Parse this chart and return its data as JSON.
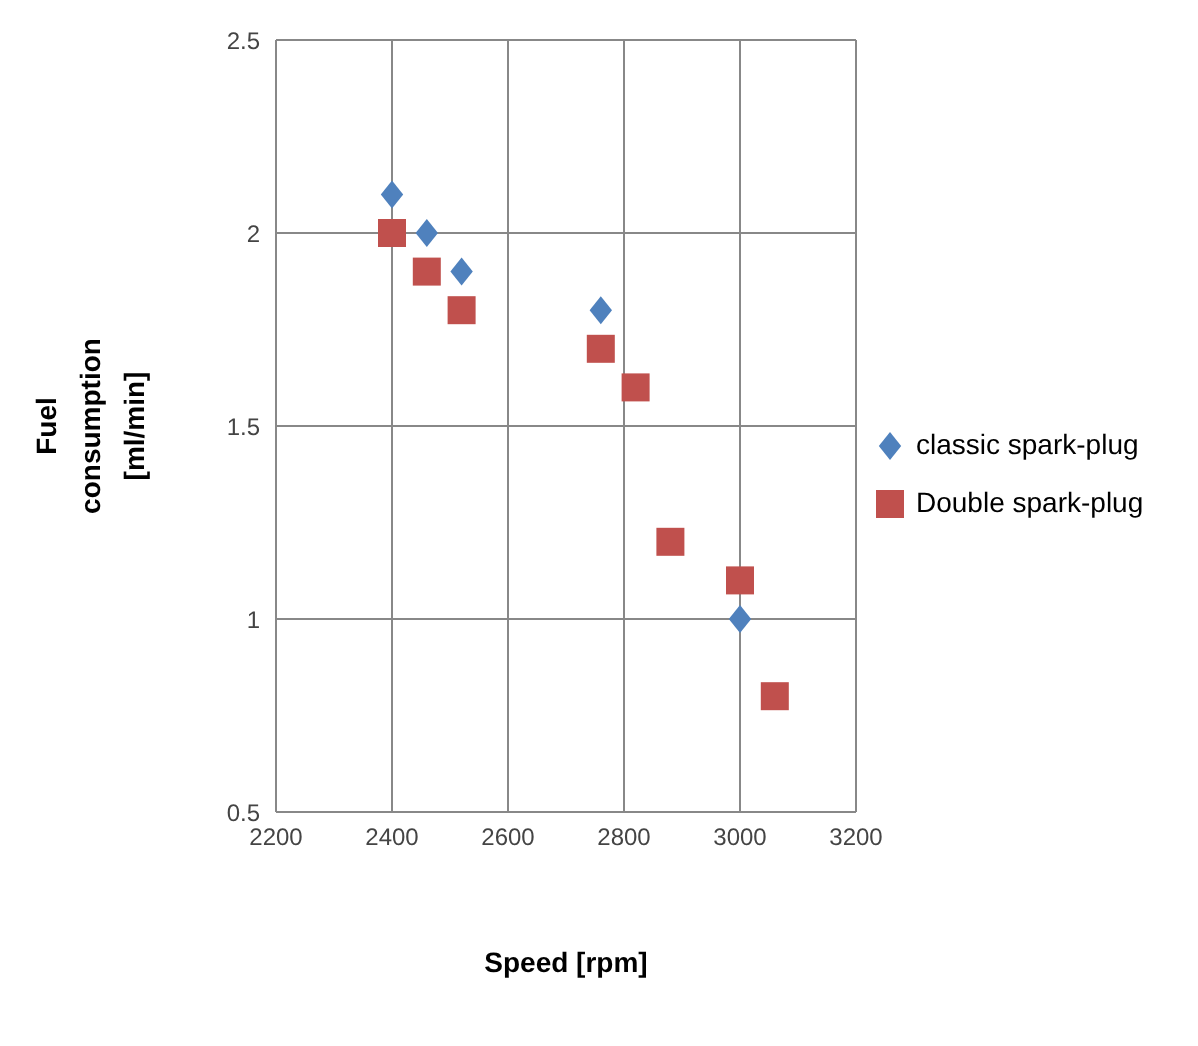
{
  "chart_data": {
    "type": "scatter",
    "xlabel": "Speed [rpm]",
    "ylabel": "Fuel consumption [ml/min]",
    "xlim": [
      2200,
      3200
    ],
    "xticks": [
      2200,
      2400,
      2600,
      2800,
      3000,
      3200
    ],
    "ylim": [
      0.5,
      2.5
    ],
    "yticks": [
      0.5,
      1,
      1.5,
      2,
      2.5
    ],
    "grid": true,
    "legend": "right",
    "series": [
      {
        "name": "classic spark-plug",
        "color": "#4f81bd",
        "marker": "diamond",
        "x": [
          2400,
          2460,
          2520,
          2760,
          3000
        ],
        "values": [
          2.1,
          2.0,
          1.9,
          1.8,
          1.0
        ]
      },
      {
        "name": "Double spark-plug",
        "color": "#c0504d",
        "marker": "square",
        "x": [
          2400,
          2460,
          2520,
          2760,
          2820,
          2880,
          3000,
          3060
        ],
        "values": [
          2.0,
          1.9,
          1.8,
          1.7,
          1.6,
          1.2,
          1.1,
          0.8
        ]
      }
    ]
  }
}
